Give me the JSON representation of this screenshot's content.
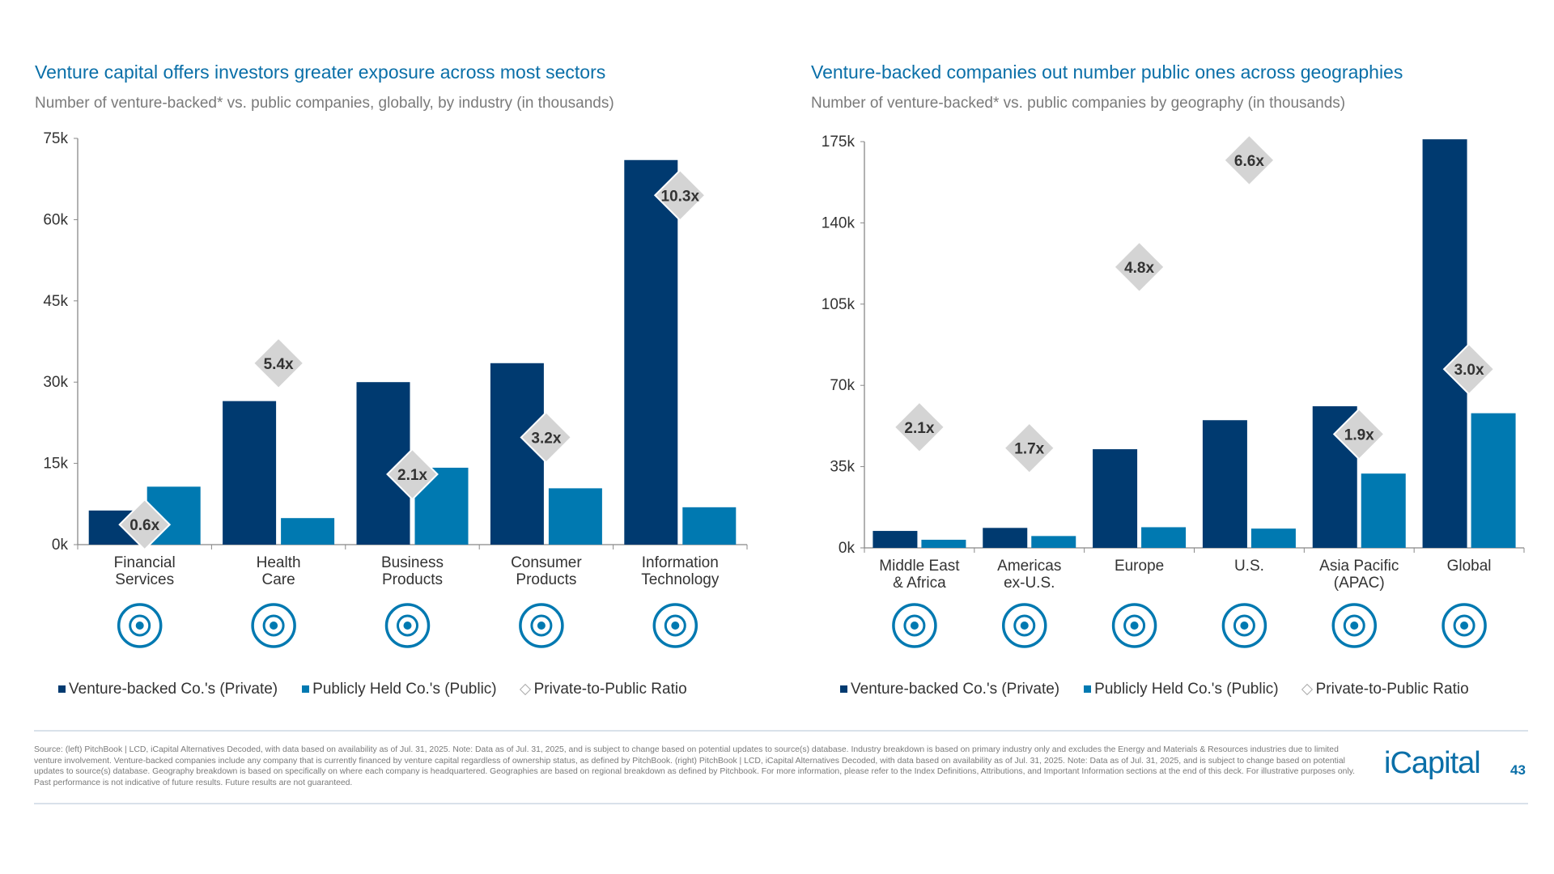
{
  "colors": {
    "private": "#003a70",
    "public": "#0079b1",
    "ratio": "#d4d4d4",
    "title": "#0a6fa8"
  },
  "chart_data": [
    {
      "type": "bar",
      "title": "Venture capital offers investors greater exposure across most sectors",
      "subtitle": "Number of venture-backed* vs. public companies, globally, by industry (in thousands)",
      "categories": [
        "Financial\nServices",
        "Health\nCare",
        "Business\nProducts",
        "Consumer\nProducts",
        "Information\nTechnology"
      ],
      "icons": [
        "dollar-coin-icon",
        "stethoscope-icon",
        "sofa-icon",
        "building-icon",
        "laptop-icon"
      ],
      "yticks": [
        "0k",
        "15k",
        "30k",
        "45k",
        "60k",
        "75k"
      ],
      "ylim": [
        0,
        75
      ],
      "series": [
        {
          "name": "Venture-backed Co.'s (Private)",
          "values": [
            6.3,
            26.5,
            30.0,
            33.5,
            71.0
          ]
        },
        {
          "name": "Publicly Held Co.'s (Public)",
          "values": [
            10.7,
            4.9,
            14.2,
            10.4,
            6.9
          ]
        }
      ],
      "ratios": [
        "0.6x",
        "5.4x",
        "2.1x",
        "3.2x",
        "10.3x"
      ],
      "ratio_legend": "Private-to-Public Ratio",
      "legend": "bottom"
    },
    {
      "type": "bar",
      "title": "Venture-backed companies out number public ones across geographies",
      "subtitle": "Number of venture-backed* vs. public companies by geography (in thousands)",
      "categories": [
        "Middle East\n& Africa",
        "Americas\nex-U.S.",
        "Europe",
        "U.S.",
        "Asia Pacific\n(APAC)",
        "Global"
      ],
      "icons": [
        "africa-globe-icon",
        "americas-globe-icon",
        "europe-globe-icon",
        "asia-globe-icon",
        "us-globe-icon",
        "world-globe-icon"
      ],
      "yticks": [
        "0k",
        "35k",
        "70k",
        "105k",
        "140k",
        "175k"
      ],
      "ylim": [
        0,
        175
      ],
      "series": [
        {
          "name": "Venture-backed Co.'s (Private)",
          "values": [
            7.3,
            8.6,
            42.5,
            55.0,
            61.0,
            176.0
          ]
        },
        {
          "name": "Publicly Held Co.'s (Public)",
          "values": [
            3.5,
            5.1,
            8.9,
            8.3,
            32.0,
            58.0
          ]
        }
      ],
      "ratios": [
        "2.1x",
        "1.7x",
        "4.8x",
        "6.6x",
        "1.9x",
        "3.0x"
      ],
      "ratio_legend": "Private-to-Public Ratio",
      "legend": "bottom"
    }
  ],
  "footer": {
    "source": "Source: (left) PitchBook | LCD, iCapital Alternatives Decoded, with data based on availability as of Jul. 31, 2025. Note: Data as of Jul. 31, 2025, and is subject to change based on potential updates to source(s) database. Industry breakdown is based on primary industry only and excludes the Energy and Materials & Resources industries due to limited venture involvement. Venture-backed companies include any company that is currently financed by venture capital regardless of ownership status, as defined by PitchBook. (right) PitchBook | LCD, iCapital Alternatives Decoded, with data based on availability as of Jul. 31, 2025. Note: Data as of Jul. 31, 2025, and is subject to change based on potential updates to source(s) database. Geography breakdown is based on specifically on where each company is headquartered. Geographies are based on regional breakdown as defined by Pitchbook. For more information, please refer to the Index Definitions, Attributions, and Important Information sections at the end of this deck. For illustrative purposes only. Past performance is not indicative of future results. Future results are not guaranteed.",
    "logo": "iCapital",
    "page_number": "43"
  }
}
